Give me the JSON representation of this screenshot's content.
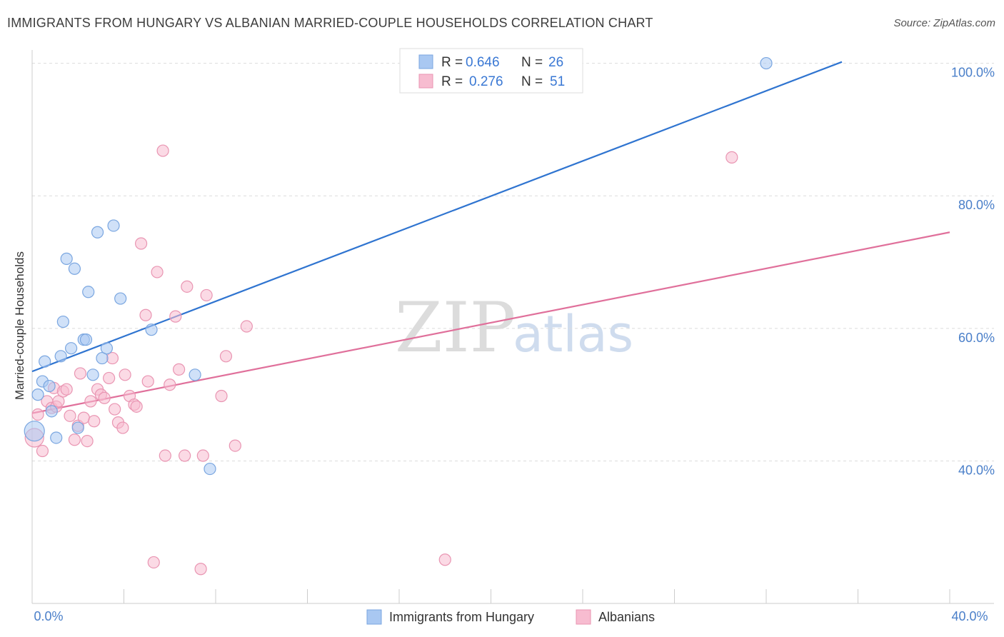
{
  "header": {
    "title": "IMMIGRANTS FROM HUNGARY VS ALBANIAN MARRIED-COUPLE HOUSEHOLDS CORRELATION CHART",
    "source": "Source: ZipAtlas.com"
  },
  "watermark": {
    "zip": "ZIP",
    "atlas": "atlas"
  },
  "legend": {
    "r_label": "R =",
    "n_label": "N =",
    "entries": [
      {
        "r": "0.646",
        "n": "26",
        "color": "#a9c8f2"
      },
      {
        "r": "0.276",
        "n": "51",
        "color": "#f7bcd0"
      }
    ]
  },
  "chart_data": {
    "type": "scatter",
    "title": "IMMIGRANTS FROM HUNGARY VS ALBANIAN MARRIED-COUPLE HOUSEHOLDS CORRELATION CHART",
    "xlabel": "",
    "ylabel": "Married-couple Households",
    "xlim": [
      0,
      40
    ],
    "ylim": [
      18.5,
      102
    ],
    "x_tick_labels": {
      "min": "0.0%",
      "max": "40.0%"
    },
    "y_ticks": [
      {
        "value": 40,
        "label": "40.0%"
      },
      {
        "value": 60,
        "label": "60.0%"
      },
      {
        "value": 80,
        "label": "80.0%"
      },
      {
        "value": 100,
        "label": "100.0%"
      }
    ],
    "series": [
      {
        "name": "Immigrants from Hungary",
        "color": "#a9c8f2",
        "stroke": "#7aa6e0",
        "line_color": "#2f74d0",
        "trend": {
          "x": [
            0,
            35.3
          ],
          "y": [
            53.5,
            100.2
          ]
        },
        "points": [
          {
            "x": 0.1,
            "y": 44.5,
            "r": 14
          },
          {
            "x": 0.25,
            "y": 50.0
          },
          {
            "x": 0.45,
            "y": 52.0
          },
          {
            "x": 0.55,
            "y": 55.0
          },
          {
            "x": 0.75,
            "y": 51.3
          },
          {
            "x": 0.85,
            "y": 47.5
          },
          {
            "x": 1.05,
            "y": 43.5
          },
          {
            "x": 1.25,
            "y": 55.8
          },
          {
            "x": 1.35,
            "y": 61.0
          },
          {
            "x": 1.5,
            "y": 70.5
          },
          {
            "x": 1.7,
            "y": 57.0
          },
          {
            "x": 1.85,
            "y": 69.0
          },
          {
            "x": 2.0,
            "y": 45.0
          },
          {
            "x": 2.25,
            "y": 58.3
          },
          {
            "x": 2.45,
            "y": 65.5
          },
          {
            "x": 2.65,
            "y": 53.0
          },
          {
            "x": 2.85,
            "y": 74.5
          },
          {
            "x": 3.05,
            "y": 55.5
          },
          {
            "x": 3.25,
            "y": 57.0
          },
          {
            "x": 3.55,
            "y": 75.5
          },
          {
            "x": 3.85,
            "y": 64.5
          },
          {
            "x": 5.2,
            "y": 59.8
          },
          {
            "x": 7.1,
            "y": 53.0
          },
          {
            "x": 7.75,
            "y": 38.8
          },
          {
            "x": 2.35,
            "y": 58.3
          },
          {
            "x": 32.0,
            "y": 100.0
          }
        ]
      },
      {
        "name": "Albanians",
        "color": "#f7bcd0",
        "stroke": "#e995b2",
        "line_color": "#e0709b",
        "trend": {
          "x": [
            0,
            40
          ],
          "y": [
            47.2,
            74.5
          ]
        },
        "points": [
          {
            "x": 0.1,
            "y": 43.5,
            "r": 13
          },
          {
            "x": 0.25,
            "y": 47.0
          },
          {
            "x": 0.45,
            "y": 41.5
          },
          {
            "x": 0.65,
            "y": 49.0
          },
          {
            "x": 0.85,
            "y": 48.0
          },
          {
            "x": 0.95,
            "y": 51.0
          },
          {
            "x": 1.05,
            "y": 48.2
          },
          {
            "x": 1.15,
            "y": 49.0
          },
          {
            "x": 1.35,
            "y": 50.5
          },
          {
            "x": 1.5,
            "y": 50.8
          },
          {
            "x": 1.65,
            "y": 46.8
          },
          {
            "x": 1.85,
            "y": 43.2
          },
          {
            "x": 2.0,
            "y": 45.3
          },
          {
            "x": 2.1,
            "y": 53.2
          },
          {
            "x": 2.25,
            "y": 46.5
          },
          {
            "x": 2.4,
            "y": 43.0
          },
          {
            "x": 2.55,
            "y": 49.0
          },
          {
            "x": 2.7,
            "y": 46.0
          },
          {
            "x": 2.85,
            "y": 50.8
          },
          {
            "x": 3.0,
            "y": 50.0
          },
          {
            "x": 3.15,
            "y": 49.5
          },
          {
            "x": 3.35,
            "y": 52.5
          },
          {
            "x": 3.5,
            "y": 55.5
          },
          {
            "x": 3.6,
            "y": 47.8
          },
          {
            "x": 3.75,
            "y": 45.8
          },
          {
            "x": 3.95,
            "y": 45.0
          },
          {
            "x": 4.05,
            "y": 53.0
          },
          {
            "x": 4.25,
            "y": 49.8
          },
          {
            "x": 4.45,
            "y": 48.5
          },
          {
            "x": 4.55,
            "y": 48.2
          },
          {
            "x": 4.75,
            "y": 72.8
          },
          {
            "x": 4.95,
            "y": 62.0
          },
          {
            "x": 5.05,
            "y": 52.0
          },
          {
            "x": 5.3,
            "y": 24.7
          },
          {
            "x": 5.45,
            "y": 68.5
          },
          {
            "x": 5.7,
            "y": 86.8
          },
          {
            "x": 5.8,
            "y": 40.8
          },
          {
            "x": 6.0,
            "y": 51.5
          },
          {
            "x": 6.25,
            "y": 61.8
          },
          {
            "x": 6.4,
            "y": 53.8
          },
          {
            "x": 6.65,
            "y": 40.8
          },
          {
            "x": 6.75,
            "y": 66.3
          },
          {
            "x": 7.35,
            "y": 23.7
          },
          {
            "x": 7.45,
            "y": 40.8
          },
          {
            "x": 7.6,
            "y": 65.0
          },
          {
            "x": 8.25,
            "y": 49.8
          },
          {
            "x": 8.45,
            "y": 55.8
          },
          {
            "x": 8.85,
            "y": 42.3
          },
          {
            "x": 9.35,
            "y": 60.3
          },
          {
            "x": 18.0,
            "y": 25.1
          },
          {
            "x": 30.5,
            "y": 85.8
          }
        ]
      }
    ]
  },
  "bottom_legend": [
    {
      "label": "Immigrants from Hungary",
      "color": "#a9c8f2",
      "stroke": "#7aa6e0"
    },
    {
      "label": "Albanians",
      "color": "#f7bcd0",
      "stroke": "#e995b2"
    }
  ]
}
